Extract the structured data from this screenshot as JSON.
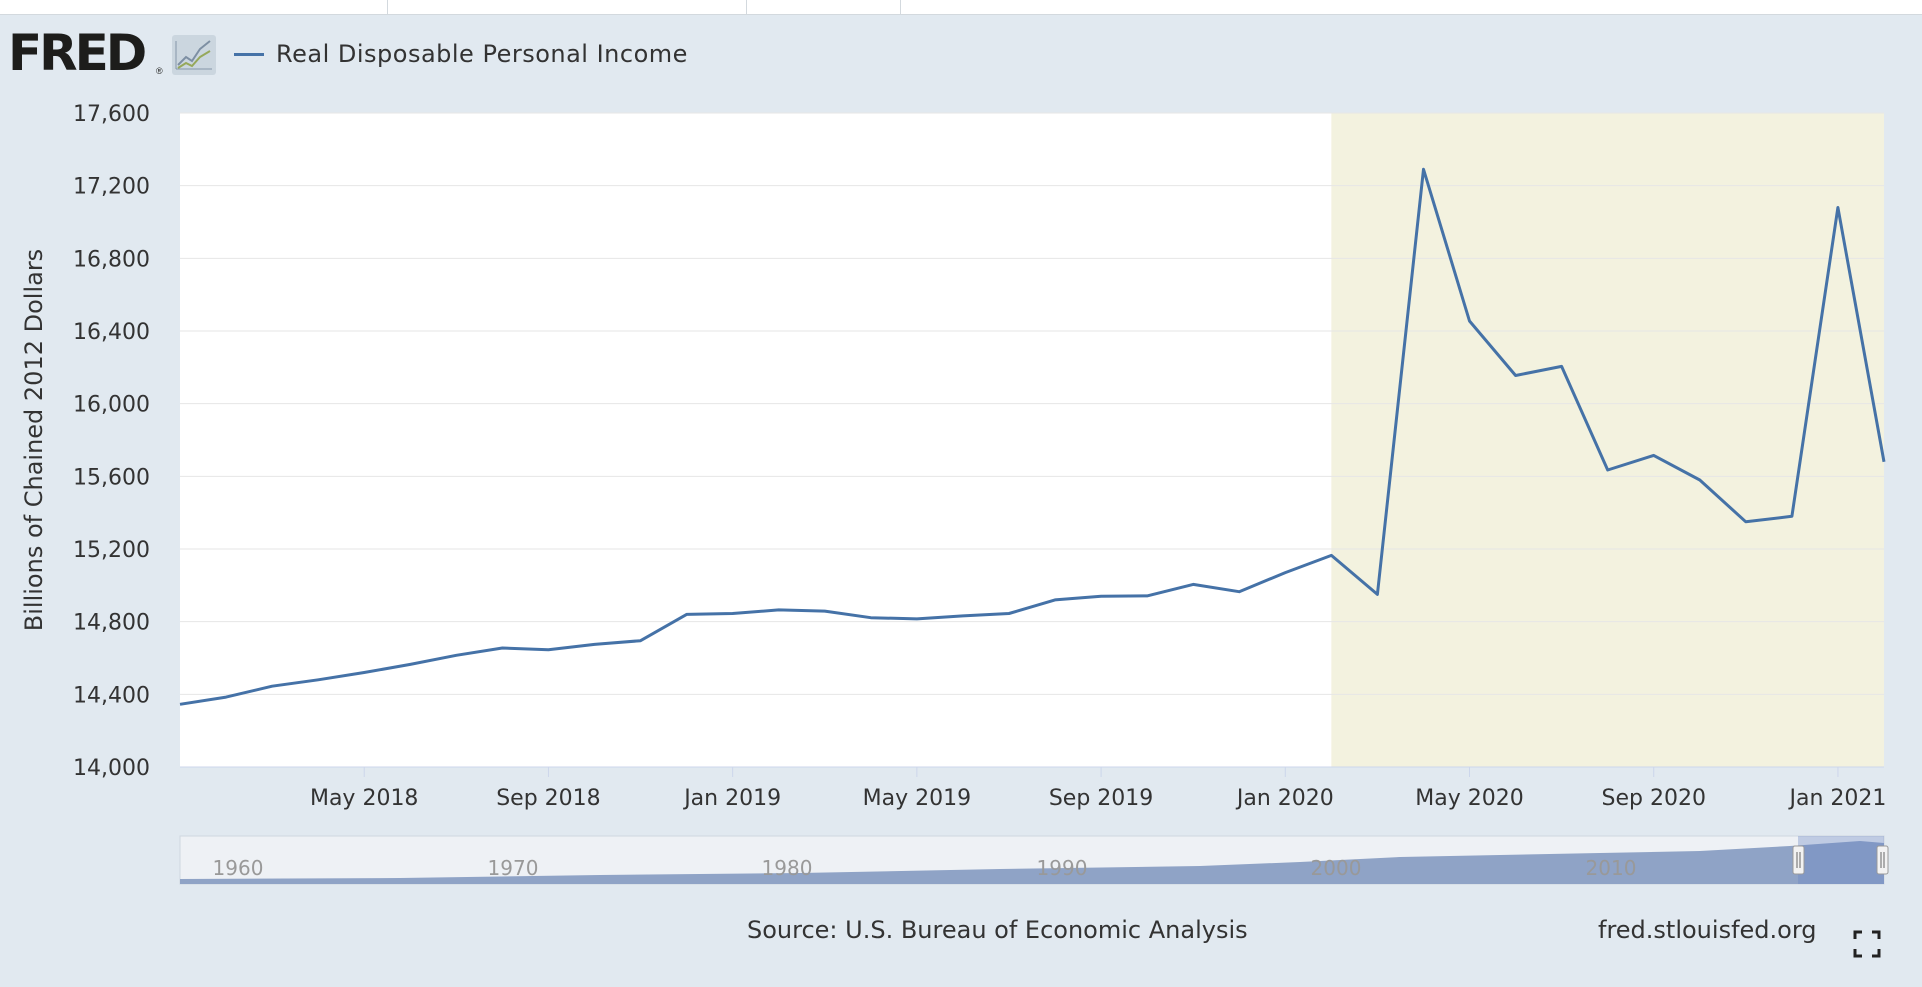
{
  "header": {
    "logo_text": "FRED",
    "logo_mark": "®",
    "logo_icon": "line-graph-icon",
    "legend_label": "Real Disposable Personal Income"
  },
  "footer": {
    "source": "Source: U.S. Bureau of Economic Analysis",
    "site": "fred.stlouisfed.org",
    "fullscreen_icon": "fullscreen-icon"
  },
  "colors": {
    "line": "#4572a7",
    "recession": "#f3f2df",
    "background": "#e1e9f0",
    "navigator_fill": "#8fa3c6"
  },
  "chart_data": {
    "type": "line",
    "title": "",
    "xlabel": "",
    "ylabel": "Billions of Chained 2012 Dollars",
    "ylim": [
      14000,
      17600
    ],
    "yticks": [
      14000,
      14400,
      14800,
      15200,
      15600,
      16000,
      16400,
      16800,
      17200,
      17600
    ],
    "ytick_labels": [
      "14,000",
      "14,400",
      "14,800",
      "15,200",
      "15,600",
      "16,000",
      "16,400",
      "16,800",
      "17,200",
      "17,600"
    ],
    "xrange_months": [
      0,
      37
    ],
    "xtick_months": [
      4,
      8,
      12,
      16,
      20,
      24,
      28,
      32,
      36
    ],
    "xtick_labels": [
      "May 2018",
      "Sep 2018",
      "Jan 2019",
      "May 2019",
      "Sep 2019",
      "Jan 2020",
      "May 2020",
      "Sep 2020",
      "Jan 2021"
    ],
    "recession_months": [
      25,
      37
    ],
    "grid": true,
    "legend": "top-left",
    "series": [
      {
        "name": "Real Disposable Personal Income",
        "months": [
          0,
          1,
          2,
          3,
          4,
          5,
          6,
          7,
          8,
          9,
          10,
          11,
          12,
          13,
          14,
          15,
          16,
          17,
          18,
          19,
          20,
          21,
          22,
          23,
          24,
          25,
          26,
          27,
          28,
          29,
          30,
          31,
          32,
          33,
          34,
          35,
          36,
          37
        ],
        "values": [
          14345,
          14385,
          14445,
          14480,
          14520,
          14565,
          14615,
          14655,
          14645,
          14675,
          14695,
          14840,
          14845,
          14865,
          14858,
          14822,
          14815,
          14832,
          14845,
          14920,
          14940,
          14942,
          15005,
          14965,
          15070,
          15165,
          14950,
          17290,
          16455,
          16155,
          16205,
          15635,
          15715,
          15580,
          15350,
          15380,
          17080,
          15680
        ]
      }
    ],
    "navigator": {
      "labels": [
        "1960",
        "1970",
        "1980",
        "1990",
        "2000",
        "2010"
      ]
    }
  }
}
